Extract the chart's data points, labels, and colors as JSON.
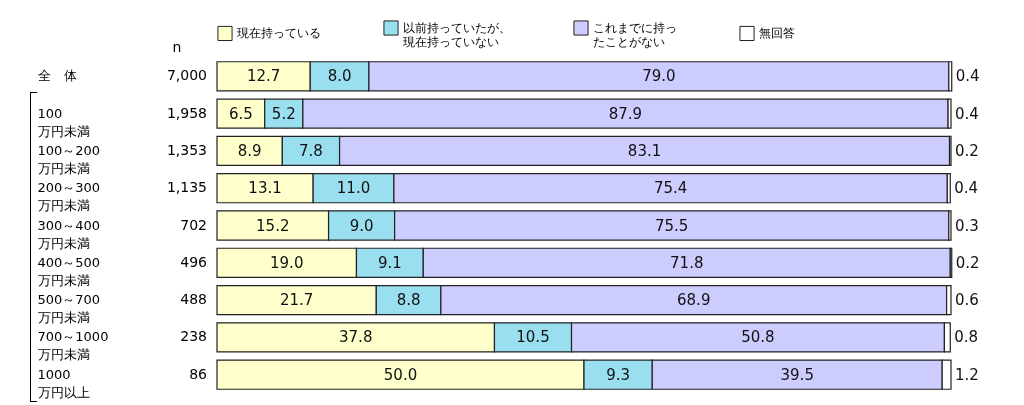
{
  "chart_data": {
    "type": "bar",
    "orientation": "horizontal",
    "stacked": true,
    "categories": [
      "全　体",
      "100\n万円未満",
      "100～200\n万円未満",
      "200～300\n万円未満",
      "300～400\n万円未満",
      "400～500\n万円未満",
      "500～700\n万円未満",
      "700～1000\n万円未満",
      "1000\n万円以上"
    ],
    "series": [
      {
        "name": "現在持っている",
        "color": "#ffffcc",
        "values": [
          12.7,
          6.5,
          8.9,
          13.1,
          15.2,
          19.0,
          21.7,
          37.8,
          50.0
        ],
        "value_labels": [
          "12.7",
          "6.5",
          "8.9",
          "13.1",
          "15.2",
          "19.0",
          "21.7",
          "37.8",
          "50.0"
        ]
      },
      {
        "name": "以前持っていたが、現在持っていない",
        "color": "#99dff0",
        "values": [
          8.0,
          5.2,
          7.8,
          11.0,
          9.0,
          9.1,
          8.8,
          10.5,
          9.3
        ],
        "value_labels": [
          "8.0",
          "5.2",
          "7.8",
          "11.0",
          "9.0",
          "9.1",
          "8.8",
          "10.5",
          "9.3"
        ]
      },
      {
        "name": "これまでに持ったことがない",
        "color": "#ccccff",
        "values": [
          79.0,
          87.9,
          83.1,
          75.4,
          75.5,
          71.8,
          68.9,
          50.8,
          39.5
        ],
        "value_labels": [
          "79.0",
          "87.9",
          "83.1",
          "75.4",
          "75.5",
          "71.8",
          "68.9",
          "50.8",
          "39.5"
        ]
      },
      {
        "name": "無回答",
        "color": "#ffffff",
        "values": [
          0.4,
          0.4,
          0.2,
          0.4,
          0.3,
          0.2,
          0.6,
          0.8,
          1.2
        ],
        "value_labels": [
          "0.4",
          "0.4",
          "0.2",
          "0.4",
          "0.3",
          "0.2",
          "0.6",
          "0.8",
          "1.2"
        ]
      }
    ],
    "xlim": [
      0,
      100
    ],
    "tick_labels": "y",
    "legend": "top",
    "annotations": [
      "n",
      "7,000",
      "1,958",
      "1,353",
      "1,135",
      "702",
      "496",
      "488",
      "238",
      "86"
    ]
  }
}
